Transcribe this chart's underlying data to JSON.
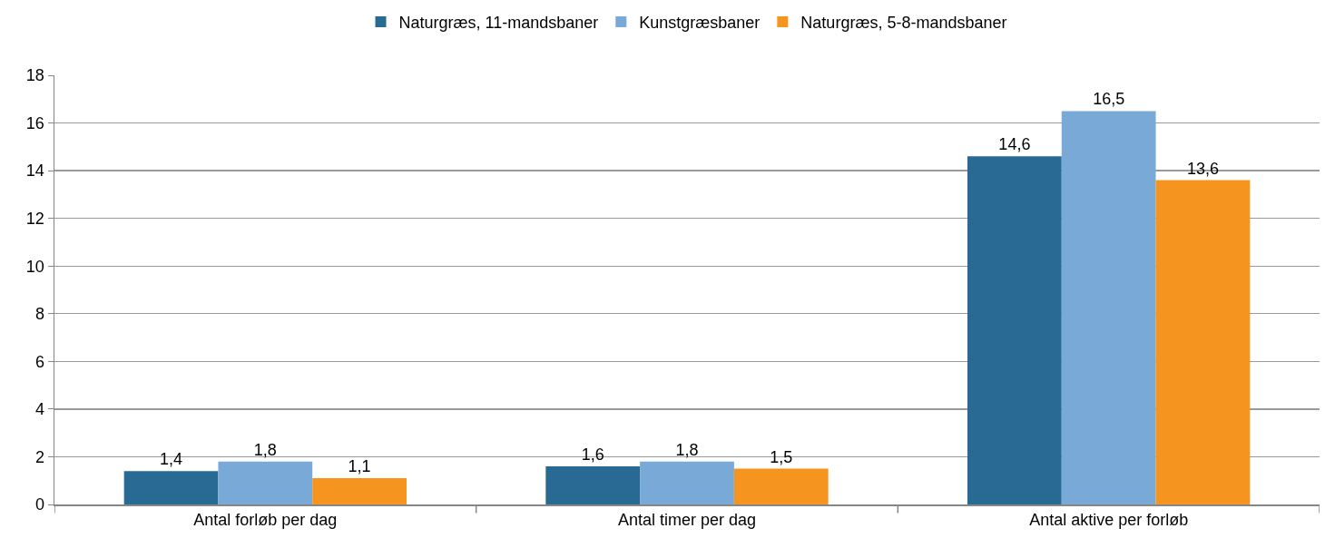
{
  "chart_data": {
    "type": "bar",
    "categories": [
      "Antal forløb per dag",
      "Antal timer per dag",
      "Antal aktive per forløb"
    ],
    "series": [
      {
        "name": "Naturgræs, 11-mandsbaner",
        "color": "#286a93",
        "values": [
          1.4,
          1.6,
          14.6
        ],
        "value_labels": [
          "1,4",
          "1,6",
          "14,6"
        ]
      },
      {
        "name": "Kunstgræsbaner",
        "color": "#78a9d7",
        "values": [
          1.8,
          1.8,
          16.5
        ],
        "value_labels": [
          "1,8",
          "1,8",
          "16,5"
        ]
      },
      {
        "name": "Naturgræs, 5-8-mandsbaner",
        "color": "#f5951f",
        "values": [
          1.1,
          1.5,
          13.6
        ],
        "value_labels": [
          "1,1",
          "1,5",
          "13,6"
        ]
      }
    ],
    "ylim": [
      0,
      18
    ],
    "yticks": [
      0,
      2,
      4,
      6,
      8,
      10,
      12,
      14,
      16,
      18
    ],
    "grid": "y",
    "legend": "top"
  }
}
